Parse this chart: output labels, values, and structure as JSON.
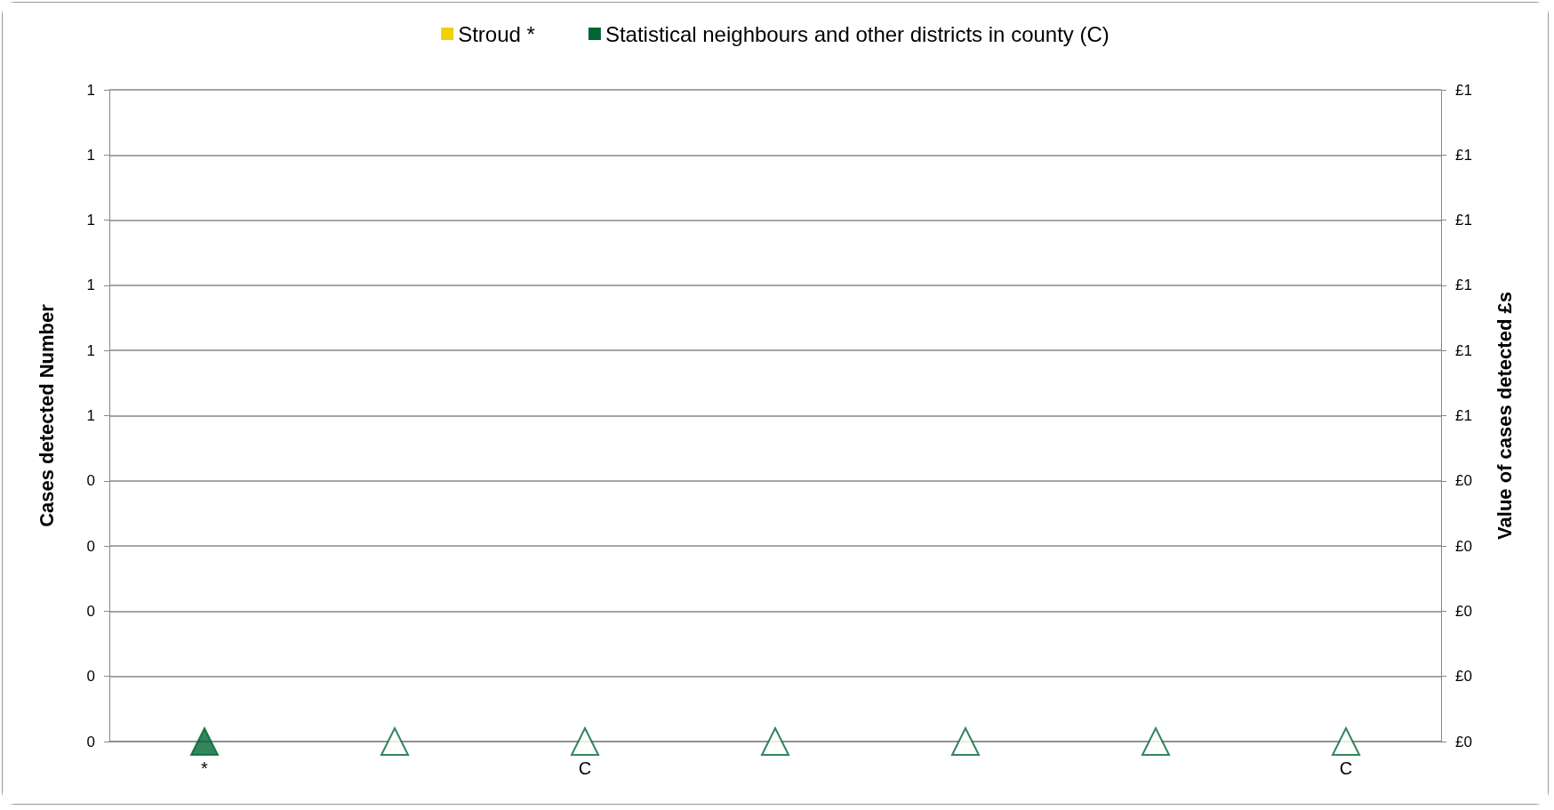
{
  "chart_data": {
    "type": "bar",
    "ylabel": "Cases detected Number",
    "y2label": "Value of cases detected £s",
    "categories": [
      "*",
      null,
      "C",
      null,
      null,
      null,
      "C"
    ],
    "series": [
      {
        "name": "Stroud *",
        "color": "#f5d000",
        "values": [
          0,
          null,
          null,
          null,
          null,
          null,
          null
        ]
      },
      {
        "name": "Statistical neighbours and other districts in county (C)",
        "color": "#006633",
        "values": [
          null,
          0,
          0,
          0,
          0,
          0,
          0
        ]
      },
      {
        "type": "scatter",
        "color": "#006633",
        "marker": "triangle",
        "colors": [
          "#006633",
          "#ffffff",
          "#ffffff",
          "#ffffff",
          "#ffffff",
          "#ffffff",
          "#ffffff"
        ],
        "values": [
          0,
          0,
          0,
          0,
          0,
          0,
          0
        ]
      }
    ],
    "ylim": [
      0,
      1
    ],
    "yticks": [
      {
        "value": 0,
        "label": "0"
      },
      {
        "value": 0.1,
        "label": "0"
      },
      {
        "value": 0.2,
        "label": "0"
      },
      {
        "value": 0.3,
        "label": "0"
      },
      {
        "value": 0.4,
        "label": "0"
      },
      {
        "value": 0.5,
        "label": "1"
      },
      {
        "value": 0.6,
        "label": "1"
      },
      {
        "value": 0.7,
        "label": "1"
      },
      {
        "value": 0.8,
        "label": "1"
      },
      {
        "value": 0.9,
        "label": "1"
      },
      {
        "value": 1,
        "label": "1"
      }
    ],
    "y2lim": [
      0,
      1
    ],
    "y2ticks": [
      {
        "value": 0,
        "label": "£0"
      },
      {
        "value": 0.1,
        "label": "£0"
      },
      {
        "value": 0.2,
        "label": "£0"
      },
      {
        "value": 0.3,
        "label": "£0"
      },
      {
        "value": 0.4,
        "label": "£0"
      },
      {
        "value": 0.5,
        "label": "£1"
      },
      {
        "value": 0.6,
        "label": "£1"
      },
      {
        "value": 0.7,
        "label": "£1"
      },
      {
        "value": 0.8,
        "label": "£1"
      },
      {
        "value": 0.9,
        "label": "£1"
      },
      {
        "value": 1,
        "label": "£1"
      }
    ],
    "grid": "y",
    "legend": "top"
  }
}
